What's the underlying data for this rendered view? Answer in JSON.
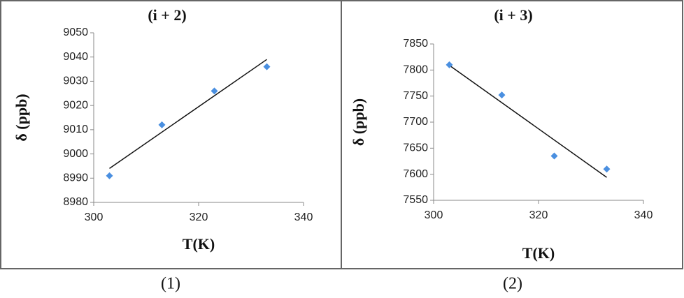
{
  "chart_data": [
    {
      "type": "scatter",
      "title": "(i + 2)",
      "x_label": "T(K)",
      "y_label": "δ (ppb)",
      "caption": "(1)",
      "x": [
        303,
        313,
        323,
        333
      ],
      "values": [
        8991,
        9012,
        9026,
        9036
      ],
      "color": "#4a8fe0",
      "trendline": {
        "x": [
          303,
          333
        ],
        "y": [
          8994,
          9039
        ],
        "color": "#111111"
      },
      "xlim": [
        300,
        340
      ],
      "xticks": [
        300,
        320,
        340
      ],
      "ylim": [
        8980,
        9050
      ],
      "yticks": [
        8980,
        8990,
        9000,
        9010,
        9020,
        9030,
        9040,
        9050
      ],
      "grid": false
    },
    {
      "type": "scatter",
      "title": "(i + 3)",
      "x_label": "T(K)",
      "y_label": "δ (ppb)",
      "caption": "(2)",
      "x": [
        303,
        313,
        323,
        333
      ],
      "values": [
        7810,
        7752,
        7635,
        7610
      ],
      "color": "#4a8fe0",
      "trendline": {
        "x": [
          303,
          333
        ],
        "y": [
          7809,
          7594
        ],
        "color": "#111111"
      },
      "xlim": [
        300,
        340
      ],
      "xticks": [
        300,
        320,
        340
      ],
      "ylim": [
        7550,
        7850
      ],
      "yticks": [
        7550,
        7600,
        7650,
        7700,
        7750,
        7800,
        7850
      ],
      "grid": false
    }
  ]
}
